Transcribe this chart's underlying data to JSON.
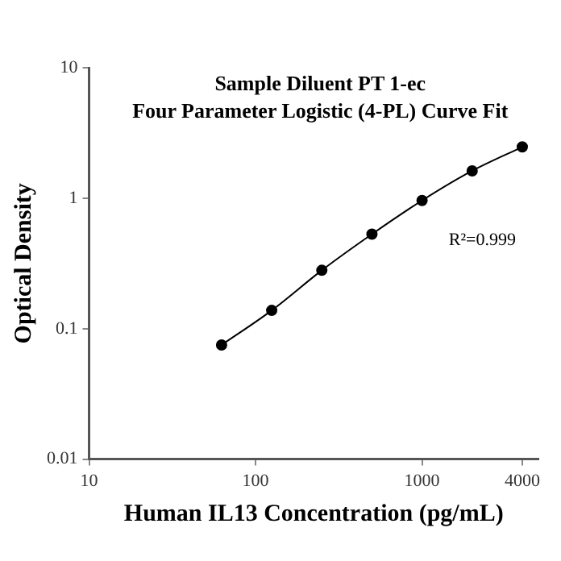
{
  "chart_data": {
    "type": "line",
    "title": "Sample Diluent PT 1-ec\nFour Parameter Logistic (4-PL) Curve Fit",
    "xlabel": "Human IL13 Concentration (pg/mL)",
    "ylabel": "Optical Density",
    "x": [
      62.5,
      125,
      250,
      500,
      1000,
      2000,
      4000
    ],
    "series": [
      {
        "color": "#000000",
        "values": [
          0.075,
          0.138,
          0.28,
          0.53,
          0.96,
          1.62,
          2.47
        ]
      }
    ],
    "log": "xy",
    "xlim": [
      10,
      5000
    ],
    "xticks": [
      10,
      100,
      1000,
      4000
    ],
    "ylim": [
      0.01,
      10
    ],
    "yticks": [
      0.01,
      0.1,
      1,
      10
    ],
    "marker": "circle",
    "line_style": "solid",
    "grid": false,
    "legend": false,
    "annotations": [
      "R²=0.999"
    ]
  }
}
